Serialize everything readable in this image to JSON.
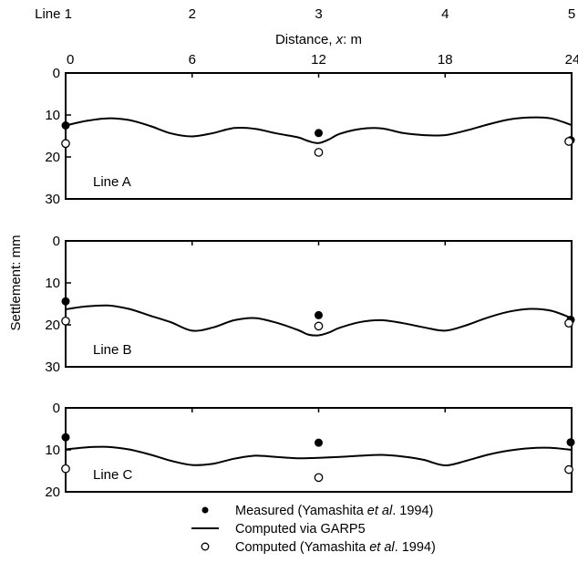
{
  "chart_data": {
    "type": "line",
    "top_axis": {
      "line_labels": [
        "Line 1",
        "2",
        "3",
        "4",
        "5"
      ],
      "line_positions_m": [
        0,
        6,
        12,
        18,
        24
      ],
      "title_text": "Distance, ",
      "title_var": "x",
      "title_unit": ": m",
      "tick_labels": [
        "0",
        "6",
        "12",
        "18",
        "24"
      ],
      "xlim": [
        0,
        24
      ]
    },
    "ylabel": "Settlement: mm",
    "panels": [
      {
        "name": "Line A",
        "ylim": [
          0,
          30
        ],
        "y_ticks": [
          0,
          10,
          20,
          30
        ],
        "y_tick_labels": [
          "0",
          "10",
          "20",
          "30"
        ],
        "computed_garp5": {
          "x": [
            0,
            1,
            2,
            3,
            4,
            5,
            6,
            7,
            8,
            9,
            10,
            11,
            11.5,
            12,
            12.5,
            13,
            14,
            15,
            16,
            17,
            18,
            19,
            20,
            21,
            22,
            23,
            24
          ],
          "y": [
            12.5,
            11.4,
            10.8,
            11.2,
            12.6,
            14.4,
            15.1,
            14.3,
            13.1,
            13.3,
            14.4,
            15.3,
            16.2,
            16.7,
            15.8,
            14.5,
            13.3,
            13.2,
            14.3,
            14.8,
            14.8,
            13.7,
            12.3,
            11.1,
            10.6,
            10.8,
            12.4
          ]
        },
        "measured": {
          "x": [
            0,
            12,
            24
          ],
          "y": [
            12.5,
            14.3,
            16.0
          ]
        },
        "computed_yamashita": {
          "x": [
            0,
            12,
            24
          ],
          "y": [
            16.8,
            18.9,
            16.3
          ]
        }
      },
      {
        "name": "Line B",
        "ylim": [
          0,
          30
        ],
        "y_ticks": [
          0,
          10,
          20,
          30
        ],
        "y_tick_labels": [
          "0",
          "10",
          "20",
          "30"
        ],
        "computed_garp5": {
          "x": [
            0,
            1,
            2,
            3,
            4,
            5,
            6,
            7,
            8,
            9,
            10,
            11,
            11.5,
            12,
            12.5,
            13,
            14,
            15,
            16,
            17,
            18,
            19,
            20,
            21,
            22,
            23,
            24
          ],
          "y": [
            16.3,
            15.6,
            15.4,
            16.2,
            17.8,
            19.4,
            21.4,
            20.6,
            18.9,
            18.4,
            19.5,
            21.2,
            22.3,
            22.5,
            21.8,
            20.7,
            19.3,
            18.9,
            19.6,
            20.6,
            21.4,
            20.1,
            18.3,
            16.9,
            16.2,
            16.6,
            18.4
          ]
        },
        "measured": {
          "x": [
            0,
            12,
            24
          ],
          "y": [
            14.4,
            17.7,
            18.8
          ]
        },
        "computed_yamashita": {
          "x": [
            0,
            12,
            24
          ],
          "y": [
            19.1,
            20.3,
            19.6
          ]
        }
      },
      {
        "name": "Line C",
        "ylim": [
          0,
          20
        ],
        "y_ticks": [
          0,
          10,
          20
        ],
        "y_tick_labels": [
          "0",
          "10",
          "20"
        ],
        "computed_garp5": {
          "x": [
            0,
            1,
            2,
            3,
            4,
            5,
            6,
            7,
            8,
            9,
            10,
            11,
            12,
            13,
            14,
            15,
            16,
            17,
            18,
            19,
            20,
            21,
            22,
            23,
            24
          ],
          "y": [
            9.9,
            9.4,
            9.3,
            9.9,
            11.1,
            12.6,
            13.6,
            13.3,
            12.1,
            11.4,
            11.7,
            12.0,
            11.9,
            11.7,
            11.4,
            11.2,
            11.6,
            12.4,
            13.7,
            12.6,
            11.2,
            10.2,
            9.6,
            9.5,
            10.0
          ]
        },
        "measured": {
          "x": [
            0,
            12,
            24
          ],
          "y": [
            7.0,
            8.3,
            8.2
          ]
        },
        "computed_yamashita": {
          "x": [
            0,
            12,
            24
          ],
          "y": [
            14.5,
            16.6,
            14.7
          ]
        }
      }
    ],
    "legend": {
      "placement": "bottom-center",
      "entries": [
        {
          "marker": "filled-circle",
          "parts": [
            {
              "t": "Measured (Yamashita "
            },
            {
              "t": "et al",
              "i": true
            },
            {
              "t": ". 1994)"
            }
          ]
        },
        {
          "marker": "line",
          "parts": [
            {
              "t": "Computed via GARP5"
            }
          ]
        },
        {
          "marker": "open-circle",
          "parts": [
            {
              "t": "Computed (Yamashita "
            },
            {
              "t": "et al",
              "i": true
            },
            {
              "t": ". 1994)"
            }
          ]
        }
      ]
    },
    "grid": false
  }
}
